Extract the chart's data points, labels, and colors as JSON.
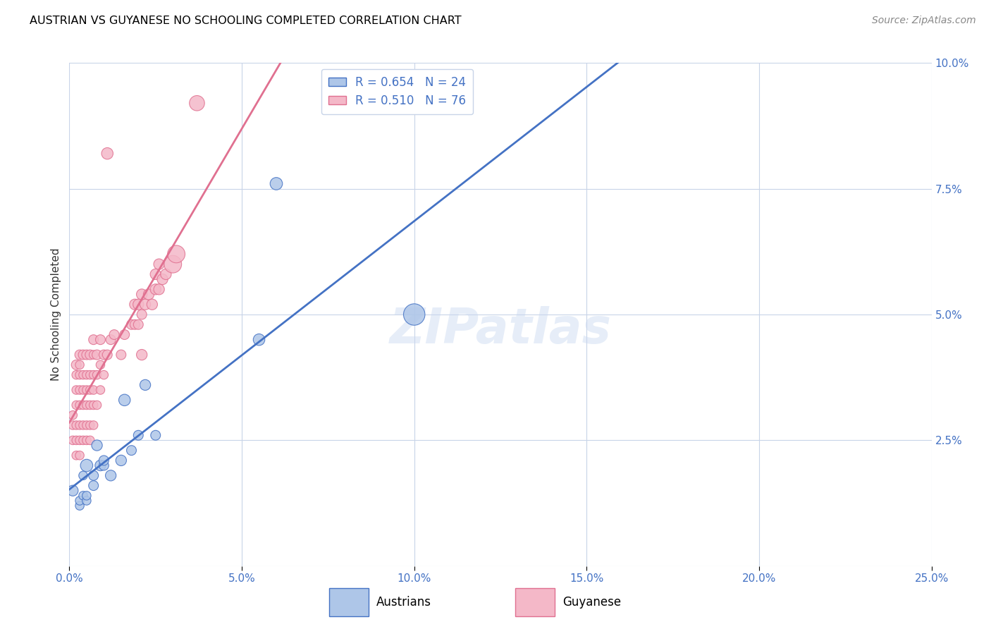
{
  "title": "AUSTRIAN VS GUYANESE NO SCHOOLING COMPLETED CORRELATION CHART",
  "source": "Source: ZipAtlas.com",
  "ylabel": "No Schooling Completed",
  "xlim": [
    0.0,
    0.25
  ],
  "ylim": [
    0.0,
    0.1
  ],
  "xticks": [
    0.0,
    0.05,
    0.1,
    0.15,
    0.2,
    0.25
  ],
  "yticks": [
    0.0,
    0.025,
    0.05,
    0.075,
    0.1
  ],
  "ytick_labels": [
    "",
    "2.5%",
    "5.0%",
    "7.5%",
    "10.0%"
  ],
  "xtick_labels": [
    "0.0%",
    "5.0%",
    "10.0%",
    "15.0%",
    "20.0%",
    "25.0%"
  ],
  "blue_scatter_color": "#aec6e8",
  "blue_edge_color": "#4472c4",
  "pink_scatter_color": "#f4b8c8",
  "pink_edge_color": "#e07090",
  "blue_line_color": "#4472c4",
  "pink_line_color": "#e07090",
  "dashed_line_color": "#aaaaaa",
  "legend_blue_text": "R = 0.654   N = 24",
  "legend_pink_text": "R = 0.510   N = 76",
  "watermark": "ZIPatlas",
  "background_color": "#ffffff",
  "grid_color": "#c8d4e8",
  "axis_color": "#4472c4",
  "austrians_x": [
    0.001,
    0.003,
    0.003,
    0.004,
    0.004,
    0.005,
    0.005,
    0.005,
    0.007,
    0.007,
    0.008,
    0.009,
    0.01,
    0.01,
    0.012,
    0.015,
    0.016,
    0.018,
    0.02,
    0.022,
    0.025,
    0.055,
    0.06,
    0.1
  ],
  "austrians_y": [
    0.015,
    0.012,
    0.013,
    0.014,
    0.018,
    0.013,
    0.014,
    0.02,
    0.016,
    0.018,
    0.024,
    0.02,
    0.02,
    0.021,
    0.018,
    0.021,
    0.033,
    0.023,
    0.026,
    0.036,
    0.026,
    0.045,
    0.076,
    0.05
  ],
  "austrians_size": [
    30,
    20,
    20,
    20,
    20,
    20,
    20,
    40,
    25,
    25,
    30,
    30,
    25,
    25,
    30,
    30,
    35,
    25,
    25,
    30,
    25,
    35,
    40,
    120
  ],
  "guyanese_x": [
    0.001,
    0.001,
    0.001,
    0.002,
    0.002,
    0.002,
    0.002,
    0.002,
    0.002,
    0.002,
    0.003,
    0.003,
    0.003,
    0.003,
    0.003,
    0.003,
    0.003,
    0.003,
    0.004,
    0.004,
    0.004,
    0.004,
    0.004,
    0.004,
    0.005,
    0.005,
    0.005,
    0.005,
    0.005,
    0.005,
    0.006,
    0.006,
    0.006,
    0.006,
    0.006,
    0.006,
    0.007,
    0.007,
    0.007,
    0.007,
    0.007,
    0.007,
    0.008,
    0.008,
    0.008,
    0.009,
    0.009,
    0.009,
    0.01,
    0.01,
    0.011,
    0.012,
    0.013,
    0.015,
    0.016,
    0.018,
    0.019,
    0.019,
    0.02,
    0.02,
    0.021,
    0.021,
    0.022,
    0.023,
    0.024,
    0.025,
    0.025,
    0.026,
    0.026,
    0.027,
    0.028,
    0.03,
    0.031,
    0.021,
    0.011,
    0.037
  ],
  "guyanese_y": [
    0.025,
    0.028,
    0.03,
    0.022,
    0.025,
    0.028,
    0.032,
    0.035,
    0.038,
    0.04,
    0.022,
    0.025,
    0.028,
    0.032,
    0.035,
    0.038,
    0.04,
    0.042,
    0.025,
    0.028,
    0.032,
    0.035,
    0.038,
    0.042,
    0.025,
    0.028,
    0.032,
    0.035,
    0.038,
    0.042,
    0.025,
    0.028,
    0.032,
    0.035,
    0.038,
    0.042,
    0.028,
    0.032,
    0.035,
    0.038,
    0.042,
    0.045,
    0.032,
    0.038,
    0.042,
    0.035,
    0.04,
    0.045,
    0.038,
    0.042,
    0.042,
    0.045,
    0.046,
    0.042,
    0.046,
    0.048,
    0.048,
    0.052,
    0.048,
    0.052,
    0.05,
    0.054,
    0.052,
    0.054,
    0.052,
    0.055,
    0.058,
    0.055,
    0.06,
    0.057,
    0.058,
    0.06,
    0.062,
    0.042,
    0.082,
    0.092
  ],
  "guyanese_size": [
    20,
    20,
    20,
    20,
    20,
    20,
    20,
    20,
    20,
    25,
    20,
    20,
    20,
    20,
    20,
    20,
    20,
    25,
    20,
    20,
    20,
    20,
    20,
    25,
    20,
    20,
    20,
    20,
    20,
    25,
    20,
    20,
    20,
    20,
    20,
    25,
    20,
    20,
    20,
    20,
    20,
    25,
    20,
    20,
    25,
    20,
    20,
    25,
    20,
    25,
    25,
    25,
    25,
    25,
    25,
    25,
    25,
    30,
    25,
    30,
    25,
    30,
    30,
    30,
    30,
    30,
    30,
    30,
    30,
    30,
    30,
    80,
    80,
    30,
    35,
    60
  ]
}
